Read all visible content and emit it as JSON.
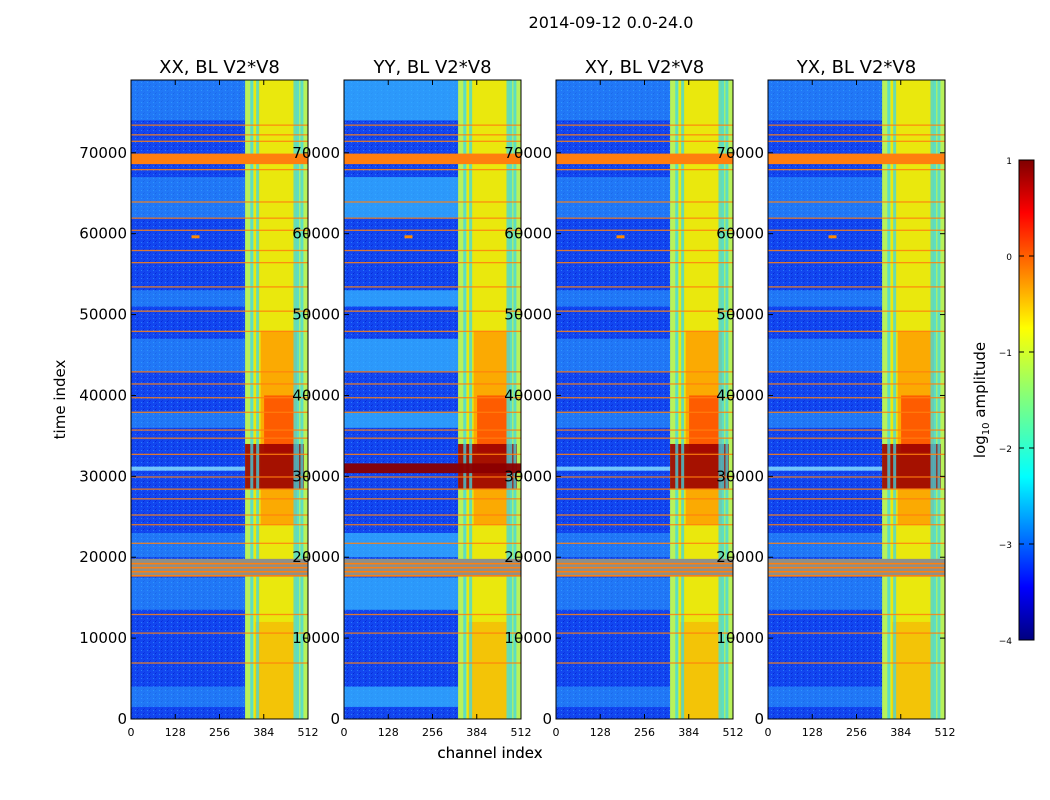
{
  "figure": {
    "suptitle": "2014-09-12 0.0-24.0"
  },
  "chart_data": [
    {
      "type": "heatmap",
      "title": "XX, BL V2*V8",
      "xlabel": "channel index",
      "ylabel": "time index",
      "xlim": [
        0,
        512
      ],
      "ylim": [
        0,
        79000
      ],
      "xticks": [
        0,
        128,
        256,
        384,
        512
      ],
      "yticks": [
        0,
        10000,
        20000,
        30000,
        40000,
        50000,
        60000,
        70000
      ]
    },
    {
      "type": "heatmap",
      "title": "YY, BL V2*V8",
      "xlabel": "channel index",
      "ylabel": "",
      "xlim": [
        0,
        512
      ],
      "ylim": [
        0,
        79000
      ],
      "xticks": [
        0,
        128,
        256,
        384,
        512
      ],
      "yticks": [
        0,
        10000,
        20000,
        30000,
        40000,
        50000,
        60000,
        70000
      ]
    },
    {
      "type": "heatmap",
      "title": "XY, BL V2*V8",
      "xlabel": "",
      "ylabel": "",
      "xlim": [
        0,
        512
      ],
      "ylim": [
        0,
        79000
      ],
      "xticks": [
        0,
        128,
        256,
        384,
        512
      ],
      "yticks": [
        0,
        10000,
        20000,
        30000,
        40000,
        50000,
        60000,
        70000
      ]
    },
    {
      "type": "heatmap",
      "title": "YX, BL V2*V8",
      "xlabel": "",
      "ylabel": "",
      "xlim": [
        0,
        512
      ],
      "ylim": [
        0,
        79000
      ],
      "xticks": [
        0,
        128,
        256,
        384,
        512
      ],
      "yticks": [
        0,
        10000,
        20000,
        30000,
        40000,
        50000,
        60000,
        70000
      ]
    }
  ],
  "colorbar": {
    "label": "log10 amplitude",
    "label_main": "log",
    "label_sub": "10",
    "label_rest": " amplitude",
    "range": [
      -4,
      1
    ],
    "ticks": [
      -4,
      -3,
      -2,
      -1,
      0,
      1
    ],
    "tick_labels": [
      "−4",
      "−3",
      "−2",
      "−1",
      "0",
      "1"
    ],
    "colormap": "jet",
    "colors": [
      "#00007f",
      "#0000ff",
      "#007fff",
      "#00ffff",
      "#7fff7f",
      "#ffff00",
      "#ff7f00",
      "#ff0000",
      "#7f0000"
    ]
  },
  "flagged_color": "#ff7f0e"
}
